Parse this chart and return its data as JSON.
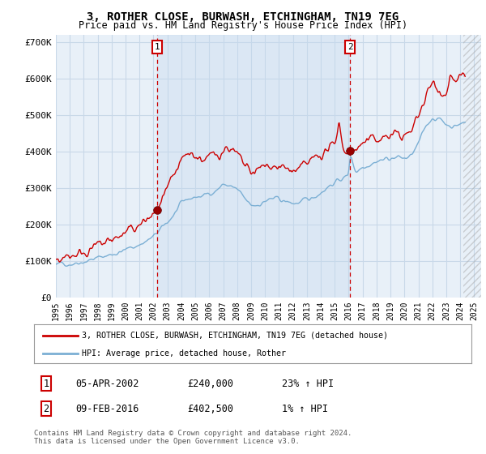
{
  "title": "3, ROTHER CLOSE, BURWASH, ETCHINGHAM, TN19 7EG",
  "subtitle": "Price paid vs. HM Land Registry's House Price Index (HPI)",
  "legend_line1": "3, ROTHER CLOSE, BURWASH, ETCHINGHAM, TN19 7EG (detached house)",
  "legend_line2": "HPI: Average price, detached house, Rother",
  "annotation1": {
    "num": "1",
    "date": "05-APR-2002",
    "price": "£240,000",
    "hpi": "23% ↑ HPI",
    "x_year": 2002.27,
    "y_val": 240000
  },
  "annotation2": {
    "num": "2",
    "date": "09-FEB-2016",
    "price": "£402,500",
    "hpi": "1% ↑ HPI",
    "x_year": 2016.1,
    "y_val": 402500
  },
  "footer1": "Contains HM Land Registry data © Crown copyright and database right 2024.",
  "footer2": "This data is licensed under the Open Government Licence v3.0.",
  "hpi_color": "#7bafd4",
  "price_color": "#cc0000",
  "bg_color": "#ffffff",
  "plot_bg_color": "#e8f0f8",
  "grid_color": "#c8d8e8",
  "shade_color": "#c5d8ee",
  "annotation_color": "#cc0000",
  "ylim": [
    0,
    720000
  ],
  "yticks": [
    0,
    100000,
    200000,
    300000,
    400000,
    500000,
    600000,
    700000
  ],
  "ytick_labels": [
    "£0",
    "£100K",
    "£200K",
    "£300K",
    "£400K",
    "£500K",
    "£600K",
    "£700K"
  ],
  "xlim_start": 1995.0,
  "xlim_end": 2025.5,
  "hatch_start": 2024.25
}
